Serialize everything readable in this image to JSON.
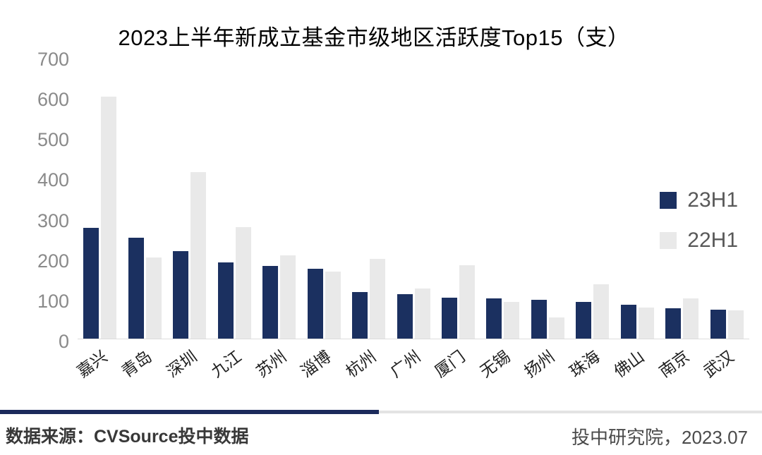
{
  "title": "2023上半年新成立基金市级地区活跃度Top15（支）",
  "colors": {
    "series_23h1": "#1b3060",
    "series_22h1": "#e9e9e9",
    "tick_text": "#8a8a8a",
    "axis_line": "#dcdcdc",
    "divider_navy": "#1b2a5b",
    "divider_gray": "#e3e3e3"
  },
  "legend": {
    "items": [
      {
        "label": "23H1",
        "color": "#1b3060"
      },
      {
        "label": "22H1",
        "color": "#e9e9e9"
      }
    ]
  },
  "footer": {
    "source": "数据来源：CVSource投中数据",
    "credit": "投中研究院，2023.07"
  },
  "chart_data": {
    "type": "bar",
    "title": "2023上半年新成立基金市级地区活跃度Top15（支）",
    "categories": [
      "嘉兴",
      "青岛",
      "深圳",
      "九江",
      "苏州",
      "淄博",
      "杭州",
      "广州",
      "厦门",
      "无锡",
      "扬州",
      "珠海",
      "佛山",
      "南京",
      "武汉"
    ],
    "series": [
      {
        "name": "23H1",
        "color": "#1b3060",
        "values": [
          275,
          250,
          217,
          189,
          180,
          173,
          116,
          110,
          101,
          100,
          96,
          91,
          84,
          75,
          72
        ]
      },
      {
        "name": "22H1",
        "color": "#e9e9e9",
        "values": [
          600,
          201,
          413,
          277,
          206,
          167,
          198,
          125,
          182,
          91,
          52,
          135,
          77,
          100,
          70
        ]
      }
    ],
    "xlabel": "",
    "ylabel": "",
    "ylim": [
      0,
      700
    ],
    "yticks": [
      0,
      100,
      200,
      300,
      400,
      500,
      600,
      700
    ],
    "grid": false,
    "legend_position": "right-middle"
  }
}
